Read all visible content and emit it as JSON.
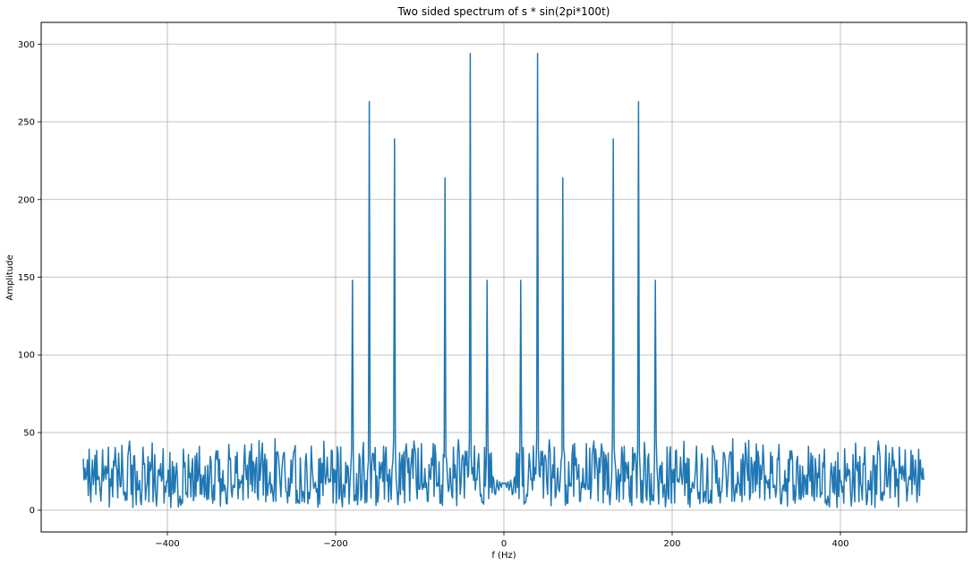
{
  "chart_data": {
    "type": "line",
    "title": "Two sided spectrum of s * sin(2pi*100t)",
    "xlabel": "f (Hz)",
    "ylabel": "Amplitude",
    "xlim": [
      -550,
      550
    ],
    "ylim": [
      -14,
      314
    ],
    "xticks": [
      -400,
      -200,
      0,
      200,
      400
    ],
    "yticks": [
      0,
      50,
      100,
      150,
      200,
      250,
      300
    ],
    "grid": true,
    "line_color": "#1f77b4",
    "x_range": [
      -500,
      499
    ],
    "x_step": 1,
    "noise_floor": {
      "typical_min": 1,
      "typical_max": 52,
      "mean": 20
    },
    "peaks": [
      {
        "x": -180,
        "y": 148
      },
      {
        "x": -160,
        "y": 263
      },
      {
        "x": -130,
        "y": 239
      },
      {
        "x": -70,
        "y": 214
      },
      {
        "x": -40,
        "y": 294
      },
      {
        "x": -20,
        "y": 148
      },
      {
        "x": 20,
        "y": 148
      },
      {
        "x": 40,
        "y": 294
      },
      {
        "x": 70,
        "y": 214
      },
      {
        "x": 130,
        "y": 239
      },
      {
        "x": 160,
        "y": 263
      },
      {
        "x": 180,
        "y": 148
      }
    ]
  }
}
